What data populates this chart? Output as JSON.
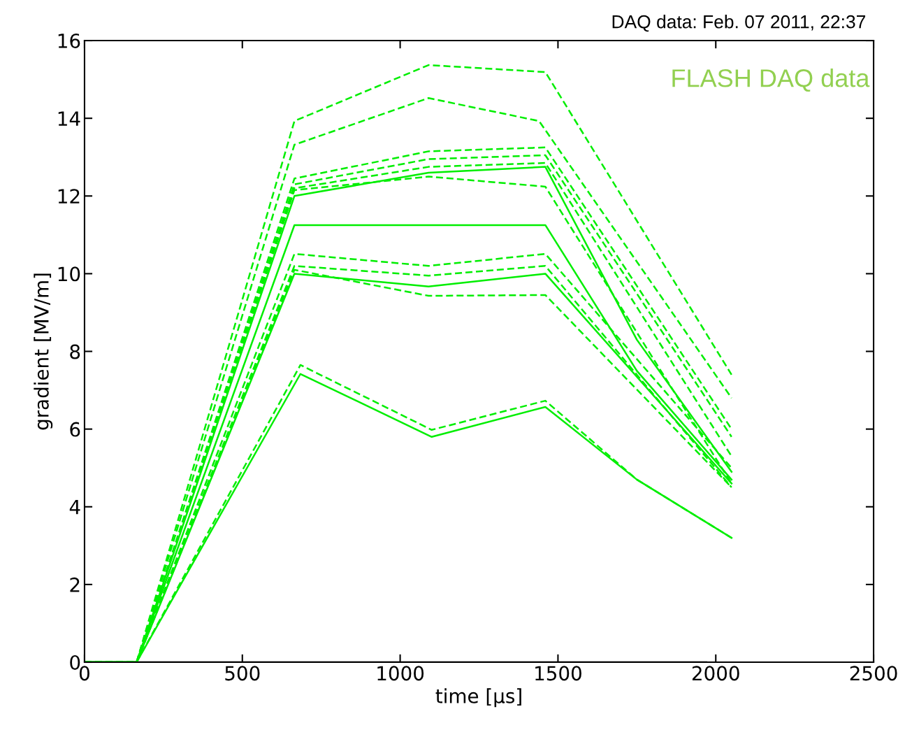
{
  "chart_data": {
    "type": "line",
    "xlabel": "time [µs]",
    "ylabel": "gradient [MV/m]",
    "annotations": [
      "DAQ data: Feb. 07 2011, 22:37",
      "FLASH DAQ data"
    ],
    "xlim": [
      0,
      2500
    ],
    "ylim": [
      0,
      16
    ],
    "xticks": [
      0,
      500,
      1000,
      1500,
      2000,
      2500
    ],
    "yticks": [
      0,
      2,
      4,
      6,
      8,
      10,
      12,
      14,
      16
    ],
    "grid": false,
    "marker": "none",
    "series": [
      {
        "color": "#000000",
        "line_style": "solid",
        "x": [
          0,
          1970
        ],
        "values": [
          0,
          0
        ]
      },
      {
        "color": "#00ee00",
        "line_style": "dashed",
        "x": [
          0,
          165,
          665,
          1090,
          1460,
          2050
        ],
        "values": [
          0,
          0,
          13.93,
          15.37,
          15.19,
          7.4
        ]
      },
      {
        "color": "#00ee00",
        "line_style": "dashed",
        "x": [
          0,
          165,
          665,
          1090,
          1440,
          2050
        ],
        "values": [
          0,
          0,
          13.32,
          14.52,
          13.93,
          6.8
        ]
      },
      {
        "color": "#00ee00",
        "line_style": "dashed",
        "x": [
          0,
          165,
          665,
          1090,
          1460,
          2050
        ],
        "values": [
          0,
          0,
          12.45,
          13.15,
          13.25,
          6.0
        ]
      },
      {
        "color": "#00ee00",
        "line_style": "dashed",
        "x": [
          0,
          165,
          665,
          1090,
          1460,
          2050
        ],
        "values": [
          0,
          0,
          12.3,
          12.95,
          13.05,
          5.8
        ]
      },
      {
        "color": "#00ee00",
        "line_style": "dashed",
        "x": [
          0,
          165,
          665,
          1090,
          1460,
          2050
        ],
        "values": [
          0,
          0,
          12.2,
          12.75,
          12.85,
          5.3
        ]
      },
      {
        "color": "#00ee00",
        "line_style": "solid",
        "x": [
          0,
          165,
          665,
          1090,
          1460,
          1750,
          2050
        ],
        "values": [
          0,
          0,
          12.0,
          12.6,
          12.75,
          8.3,
          4.9
        ]
      },
      {
        "color": "#00ee00",
        "line_style": "dashed",
        "x": [
          0,
          165,
          665,
          1090,
          1460,
          2050
        ],
        "values": [
          0,
          0,
          12.15,
          12.5,
          12.24,
          4.6
        ]
      },
      {
        "color": "#00ee00",
        "line_style": "solid",
        "x": [
          0,
          165,
          665,
          1460,
          1750,
          2050
        ],
        "values": [
          0,
          0,
          11.25,
          11.25,
          7.5,
          4.7
        ]
      },
      {
        "color": "#00ee00",
        "line_style": "dashed",
        "x": [
          0,
          165,
          665,
          1090,
          1460,
          2050
        ],
        "values": [
          0,
          0,
          10.51,
          10.2,
          10.51,
          5.0
        ]
      },
      {
        "color": "#00ee00",
        "line_style": "dashed",
        "x": [
          0,
          165,
          665,
          1090,
          1460,
          2050
        ],
        "values": [
          0,
          0,
          10.2,
          9.95,
          10.2,
          4.5
        ]
      },
      {
        "color": "#00ee00",
        "line_style": "solid",
        "x": [
          0,
          165,
          665,
          1090,
          1460,
          2050
        ],
        "values": [
          0,
          0,
          10.0,
          9.67,
          10.0,
          4.6
        ]
      },
      {
        "color": "#00ee00",
        "line_style": "dashed",
        "x": [
          0,
          165,
          665,
          1090,
          1460,
          2050
        ],
        "values": [
          0,
          0,
          10.1,
          9.43,
          9.45,
          4.5
        ]
      },
      {
        "color": "#00ee00",
        "line_style": "dashed",
        "x": [
          0,
          165,
          684,
          1100,
          1460,
          1750,
          2050
        ],
        "values": [
          0,
          0,
          7.65,
          5.98,
          6.73,
          4.7,
          3.2
        ]
      },
      {
        "color": "#00ee00",
        "line_style": "solid",
        "x": [
          0,
          165,
          684,
          1100,
          1460,
          1750,
          2050
        ],
        "values": [
          0,
          0,
          7.42,
          5.8,
          6.57,
          4.7,
          3.2
        ]
      }
    ]
  }
}
